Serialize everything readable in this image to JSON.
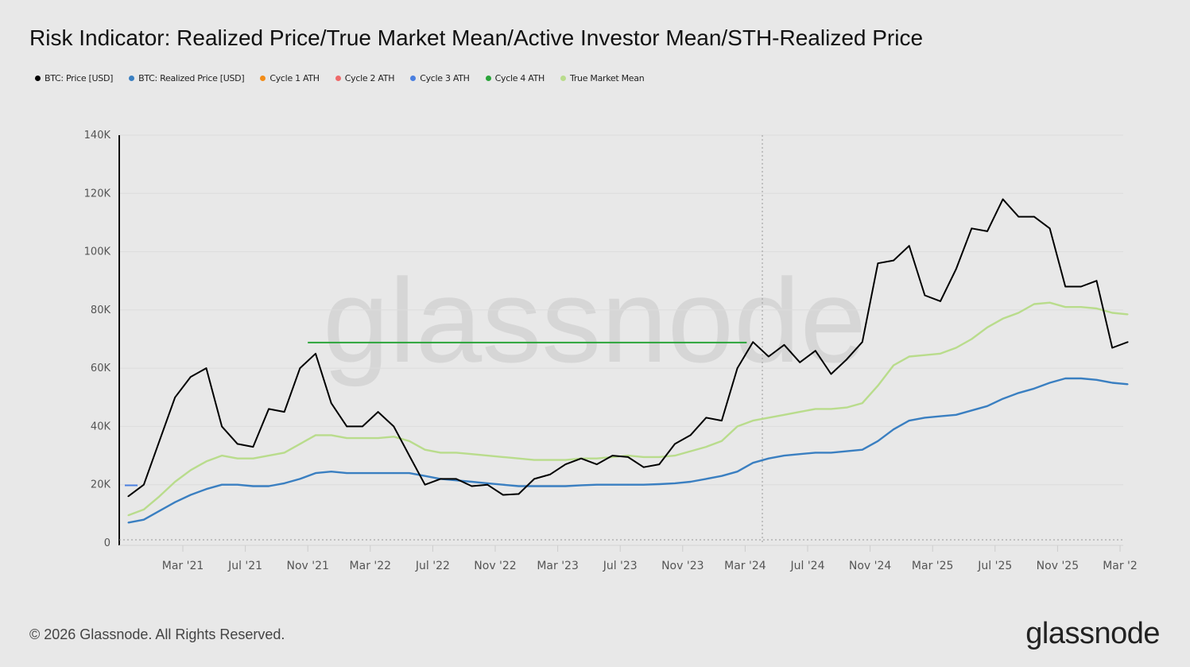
{
  "title": "Risk Indicator: Realized Price/True Market Mean/Active Investor Mean/STH-Realized Price",
  "legend": [
    {
      "label": "BTC: Price [USD]",
      "color": "#000000"
    },
    {
      "label": "BTC: Realized Price [USD]",
      "color": "#3a7fc1"
    },
    {
      "label": "Cycle 1 ATH",
      "color": "#f28c18"
    },
    {
      "label": "Cycle 2 ATH",
      "color": "#ee6a6a"
    },
    {
      "label": "Cycle 3 ATH",
      "color": "#4a7fe0"
    },
    {
      "label": "Cycle 4 ATH",
      "color": "#2aa43a"
    },
    {
      "label": "True Market Mean",
      "color": "#b9dc8c"
    }
  ],
  "footer": "© 2026 Glassnode. All Rights Reserved.",
  "logo": "glassnode",
  "watermark": "glassnode",
  "chart_data": {
    "type": "line",
    "title": "Risk Indicator: Realized Price/True Market Mean/Active Investor Mean/STH-Realized Price",
    "xlabel": "",
    "ylabel": "",
    "ylim": [
      0,
      140000
    ],
    "y_ticks": [
      "0",
      "20K",
      "40K",
      "60K",
      "80K",
      "100K",
      "120K",
      "140K"
    ],
    "x_ticks": [
      {
        "label": "Mar '21",
        "date": "2021-03"
      },
      {
        "label": "Jul '21",
        "date": "2021-07"
      },
      {
        "label": "Nov '21",
        "date": "2021-11"
      },
      {
        "label": "Mar '22",
        "date": "2022-03"
      },
      {
        "label": "Jul '22",
        "date": "2022-07"
      },
      {
        "label": "Nov '22",
        "date": "2022-11"
      },
      {
        "label": "Mar '23",
        "date": "2023-03"
      },
      {
        "label": "Jul '23",
        "date": "2023-07"
      },
      {
        "label": "Nov '23",
        "date": "2023-11"
      },
      {
        "label": "Mar '24",
        "date": "2024-03"
      },
      {
        "label": "Jul '24",
        "date": "2024-07"
      },
      {
        "label": "Nov '24",
        "date": "2024-11"
      },
      {
        "label": "Mar '25",
        "date": "2025-03"
      },
      {
        "label": "Jul '25",
        "date": "2025-07"
      },
      {
        "label": "Nov '25",
        "date": "2025-11"
      },
      {
        "label": "Mar '2",
        "date": "2026-03"
      }
    ],
    "grid": true,
    "legend_position": "top-left",
    "dates": [
      "2020-11",
      "2020-12",
      "2021-01",
      "2021-02",
      "2021-03",
      "2021-04",
      "2021-05",
      "2021-06",
      "2021-07",
      "2021-08",
      "2021-09",
      "2021-10",
      "2021-11",
      "2021-12",
      "2022-01",
      "2022-02",
      "2022-03",
      "2022-04",
      "2022-05",
      "2022-06",
      "2022-07",
      "2022-08",
      "2022-09",
      "2022-10",
      "2022-11",
      "2022-12",
      "2023-01",
      "2023-02",
      "2023-03",
      "2023-04",
      "2023-05",
      "2023-06",
      "2023-07",
      "2023-08",
      "2023-09",
      "2023-10",
      "2023-11",
      "2023-12",
      "2024-01",
      "2024-02",
      "2024-03",
      "2024-04",
      "2024-05",
      "2024-06",
      "2024-07",
      "2024-08",
      "2024-09",
      "2024-10",
      "2024-11",
      "2024-12",
      "2025-01",
      "2025-02",
      "2025-03",
      "2025-04",
      "2025-05",
      "2025-06",
      "2025-07",
      "2025-08",
      "2025-09",
      "2025-10",
      "2025-11",
      "2025-12",
      "2026-01",
      "2026-02",
      "2026-03"
    ],
    "series": [
      {
        "name": "BTC: Price [USD]",
        "color": "#000000",
        "values": [
          16000,
          20000,
          35000,
          50000,
          57000,
          60000,
          40000,
          34000,
          33000,
          46000,
          45000,
          60000,
          65000,
          48000,
          40000,
          40000,
          45000,
          40000,
          30000,
          20000,
          22000,
          22000,
          19500,
          20000,
          16500,
          16800,
          22000,
          23500,
          27000,
          29000,
          27000,
          30000,
          29500,
          26000,
          27000,
          34000,
          37000,
          43000,
          42000,
          60000,
          69000,
          64000,
          68000,
          62000,
          66000,
          58000,
          63000,
          69000,
          96000,
          97000,
          102000,
          85000,
          83000,
          94000,
          108000,
          107000,
          118000,
          112000,
          112000,
          108000,
          88000,
          88000,
          90000,
          67000,
          69000
        ]
      },
      {
        "name": "BTC: Realized Price [USD]",
        "color": "#3a7fc1",
        "values": [
          7000,
          8000,
          11000,
          14000,
          16500,
          18500,
          20000,
          20000,
          19500,
          19500,
          20500,
          22000,
          24000,
          24500,
          24000,
          24000,
          24000,
          24000,
          24000,
          23000,
          22000,
          21500,
          21000,
          20500,
          20000,
          19500,
          19500,
          19500,
          19500,
          19800,
          20000,
          20000,
          20000,
          20000,
          20200,
          20500,
          21000,
          22000,
          23000,
          24500,
          27500,
          29000,
          30000,
          30500,
          31000,
          31000,
          31500,
          32000,
          35000,
          39000,
          42000,
          43000,
          43500,
          44000,
          45500,
          47000,
          49500,
          51500,
          53000,
          55000,
          56500,
          56500,
          56000,
          55000,
          54500
        ]
      },
      {
        "name": "True Market Mean",
        "color": "#b9dc8c",
        "values": [
          9500,
          11500,
          16000,
          21000,
          25000,
          28000,
          30000,
          29000,
          29000,
          30000,
          31000,
          34000,
          37000,
          37000,
          36000,
          36000,
          36000,
          36500,
          35000,
          32000,
          31000,
          31000,
          30500,
          30000,
          29500,
          29000,
          28500,
          28500,
          28500,
          29000,
          29000,
          29500,
          30000,
          29500,
          29500,
          30000,
          31500,
          33000,
          35000,
          40000,
          42000,
          43000,
          44000,
          45000,
          46000,
          46000,
          46500,
          48000,
          54000,
          61000,
          64000,
          64500,
          65000,
          67000,
          70000,
          74000,
          77000,
          79000,
          82000,
          82500,
          81000,
          81000,
          80500,
          79000,
          78500
        ]
      }
    ],
    "ath_lines": [
      {
        "name": "Cycle 3 ATH",
        "color": "#4a7fe0",
        "value": 19800,
        "from": "2020-11",
        "to": "2020-12"
      },
      {
        "name": "Cycle 4 ATH",
        "color": "#2aa43a",
        "value": 68800,
        "from": "2021-11",
        "to": "2024-03"
      }
    ],
    "vertical_marker_date": "2024-04"
  }
}
